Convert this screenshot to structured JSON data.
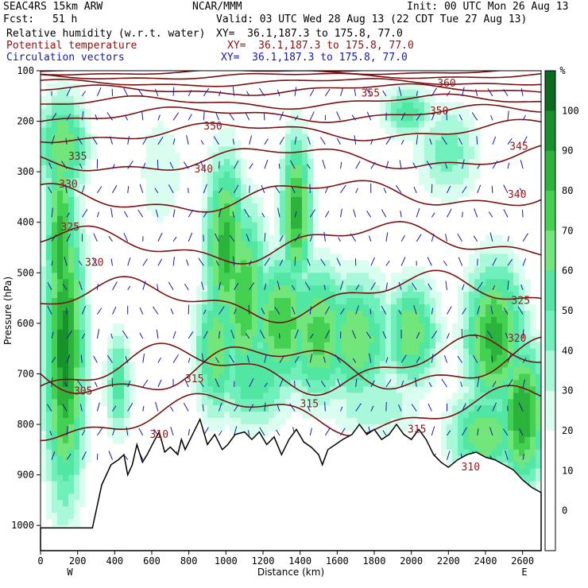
{
  "header": {
    "model": "SEAC4RS 15km ARW",
    "org": "NCAR/MMM",
    "init": "Init: 00 UTC Mon 26 Aug 13",
    "fcst_label": "Fcst:",
    "fcst_value": "51 h",
    "valid": "Valid: 03 UTC Wed 28 Aug 13 (22 CDT Tue 27 Aug 13)",
    "fields": [
      {
        "label": "Relative humidity (w.r.t. water)",
        "xy": "XY=  36.1,187.3 to 175.8, 77.0",
        "color": "#000000"
      },
      {
        "label": "Potential temperature",
        "xy": "XY=  36.1,187.3 to 175.8, 77.0",
        "color": "#8b1010"
      },
      {
        "label": "Circulation vectors",
        "xy": "XY=  36.1,187.3 to 175.8, 77.0",
        "color": "#1a1aa0"
      }
    ]
  },
  "chart_data": {
    "type": "heatmap",
    "title": "",
    "xlabel": "Distance (km)",
    "ylabel": "Pressure (hPa)",
    "xlim": [
      0,
      2700
    ],
    "ylim": [
      1050,
      100
    ],
    "x_ticks": [
      "0",
      "200",
      "400",
      "600",
      "800",
      "1000",
      "1200",
      "1400",
      "1600",
      "1800",
      "2000",
      "2200",
      "2400",
      "2600"
    ],
    "y_ticks": [
      "100",
      "200",
      "300",
      "400",
      "500",
      "600",
      "700",
      "800",
      "900",
      "1000"
    ],
    "x_end_labels": [
      "W",
      "E"
    ],
    "colorbar": {
      "unit": "%",
      "levels": [
        "100",
        "90",
        "80",
        "70",
        "60",
        "50",
        "40",
        "30",
        "20",
        "10",
        "0"
      ],
      "colors": [
        "#0a6b1e",
        "#18902c",
        "#2cb33c",
        "#44d151",
        "#72e67a",
        "#51e6a2",
        "#6ff0bb",
        "#a9f8d9",
        "#d9fdee",
        "#ffffff",
        "#ffffff",
        "#ffffff"
      ]
    },
    "theta_contours": [
      {
        "label": "305",
        "x": 230,
        "p": 735
      },
      {
        "label": "310",
        "x": 640,
        "p": 820
      },
      {
        "label": "315",
        "x": 830,
        "p": 710
      },
      {
        "label": "315",
        "x": 1450,
        "p": 760
      },
      {
        "label": "315",
        "x": 2030,
        "p": 810
      },
      {
        "label": "310",
        "x": 2320,
        "p": 885
      },
      {
        "label": "320",
        "x": 290,
        "p": 480
      },
      {
        "label": "320",
        "x": 2570,
        "p": 630
      },
      {
        "label": "325",
        "x": 160,
        "p": 410
      },
      {
        "label": "325",
        "x": 2590,
        "p": 555
      },
      {
        "label": "330",
        "x": 150,
        "p": 325
      },
      {
        "label": "335",
        "x": 200,
        "p": 270
      },
      {
        "label": "340",
        "x": 880,
        "p": 295
      },
      {
        "label": "340",
        "x": 2570,
        "p": 345
      },
      {
        "label": "345",
        "x": 2580,
        "p": 250
      },
      {
        "label": "350",
        "x": 930,
        "p": 210
      },
      {
        "label": "350",
        "x": 2150,
        "p": 180
      },
      {
        "label": "355",
        "x": 1780,
        "p": 145
      },
      {
        "label": "360",
        "x": 2190,
        "p": 125
      }
    ]
  }
}
